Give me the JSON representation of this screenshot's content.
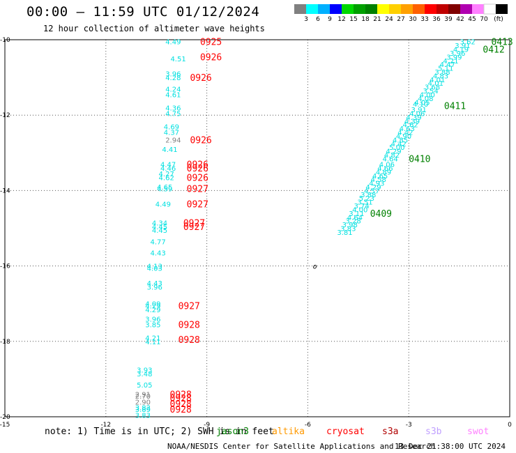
{
  "header": {
    "title": "00:00 – 11:59 UTC 01/12/2024",
    "subtitle": "12 hour collection of altimeter wave heights"
  },
  "colorbar": {
    "labels": [
      "3",
      "6",
      "9",
      "12",
      "15",
      "18",
      "21",
      "24",
      "27",
      "30",
      "33",
      "36",
      "39",
      "42",
      "45",
      "70",
      "(ft)"
    ],
    "colors": [
      "#808080",
      "#00ffff",
      "#00b0ff",
      "#0000ff",
      "#00d800",
      "#00a000",
      "#008000",
      "#ffff00",
      "#ffd000",
      "#ffa000",
      "#ff6000",
      "#ff0000",
      "#c00000",
      "#800000",
      "#b000b0",
      "#ff80ff",
      "#ffffff",
      "#000000"
    ]
  },
  "axes": {
    "x_ticks": [
      "-15",
      "-12",
      "-9",
      "-6",
      "-3",
      "0"
    ],
    "y_ticks": [
      "-10",
      "-12",
      "-14",
      "-16",
      "-18",
      "-20"
    ]
  },
  "map_label": "o",
  "chart_data": {
    "type": "scatter",
    "xlim": [
      -15,
      0
    ],
    "ylim": [
      -20,
      -10
    ],
    "point_color": "#00e0e0",
    "low_color": "#808080",
    "track_west": [
      {
        "x": -10.0,
        "y": -10.05,
        "v": "4.49"
      },
      {
        "x": -9.85,
        "y": -10.5,
        "v": "4.51"
      },
      {
        "x": -10.0,
        "y": -10.9,
        "v": "3.96"
      },
      {
        "x": -10.0,
        "y": -11.0,
        "v": "4.28"
      },
      {
        "x": -10.0,
        "y": -11.3,
        "v": "4.24"
      },
      {
        "x": -10.0,
        "y": -11.45,
        "v": "4.61"
      },
      {
        "x": -10.0,
        "y": -11.8,
        "v": "4.36"
      },
      {
        "x": -10.0,
        "y": -11.95,
        "v": "4.75"
      },
      {
        "x": -10.05,
        "y": -12.3,
        "v": "4.69"
      },
      {
        "x": -10.05,
        "y": -12.45,
        "v": "4.37"
      },
      {
        "x": -10.0,
        "y": -12.65,
        "v": "2.94",
        "low": true
      },
      {
        "x": -10.1,
        "y": -12.9,
        "v": "4.41"
      },
      {
        "x": -10.15,
        "y": -13.3,
        "v": "4.47"
      },
      {
        "x": -10.15,
        "y": -13.4,
        "v": "4.46"
      },
      {
        "x": -10.2,
        "y": -13.55,
        "v": "4.27"
      },
      {
        "x": -10.2,
        "y": -13.65,
        "v": "4.62"
      },
      {
        "x": -10.25,
        "y": -13.9,
        "v": "4.65"
      },
      {
        "x": -10.25,
        "y": -13.95,
        "v": "4.59"
      },
      {
        "x": -10.3,
        "y": -14.35,
        "v": "4.49"
      },
      {
        "x": -10.4,
        "y": -14.85,
        "v": "4.34"
      },
      {
        "x": -10.4,
        "y": -14.95,
        "v": "4.45"
      },
      {
        "x": -10.4,
        "y": -15.05,
        "v": "4.45"
      },
      {
        "x": -10.45,
        "y": -15.35,
        "v": "4.77"
      },
      {
        "x": -10.45,
        "y": -15.65,
        "v": "4.43"
      },
      {
        "x": -10.55,
        "y": -16.0,
        "v": "4.13"
      },
      {
        "x": -10.55,
        "y": -16.05,
        "v": "4.03"
      },
      {
        "x": -10.55,
        "y": -16.45,
        "v": "4.43"
      },
      {
        "x": -10.55,
        "y": -16.55,
        "v": "3.96"
      },
      {
        "x": -10.6,
        "y": -17.0,
        "v": "4.09"
      },
      {
        "x": -10.6,
        "y": -17.05,
        "v": "4.29"
      },
      {
        "x": -10.6,
        "y": -17.15,
        "v": "4.29"
      },
      {
        "x": -10.6,
        "y": -17.4,
        "v": "3.96"
      },
      {
        "x": -10.6,
        "y": -17.55,
        "v": "3.85"
      },
      {
        "x": -10.6,
        "y": -17.9,
        "v": "4.21"
      },
      {
        "x": -10.6,
        "y": -18.0,
        "v": "4.11"
      },
      {
        "x": -10.85,
        "y": -18.75,
        "v": "3.93"
      },
      {
        "x": -10.85,
        "y": -18.85,
        "v": "3.48"
      },
      {
        "x": -10.85,
        "y": -19.15,
        "v": "5.05"
      },
      {
        "x": -10.9,
        "y": -19.4,
        "v": "2.91",
        "low": true
      },
      {
        "x": -10.9,
        "y": -19.45,
        "v": "2.70",
        "low": true
      },
      {
        "x": -10.9,
        "y": -19.6,
        "v": "2.90",
        "low": true
      },
      {
        "x": -10.9,
        "y": -19.75,
        "v": "3.82"
      },
      {
        "x": -10.9,
        "y": -19.8,
        "v": "3.89"
      },
      {
        "x": -10.9,
        "y": -19.95,
        "v": "3.83"
      }
    ],
    "track_east": [
      {
        "x": -1.25,
        "y": -10.05,
        "v": "3.62"
      },
      {
        "x": -1.4,
        "y": -10.15,
        "v": "3.91"
      },
      {
        "x": -1.45,
        "y": -10.25,
        "v": "4.19"
      },
      {
        "x": -1.55,
        "y": -10.35,
        "v": "3.96"
      },
      {
        "x": -1.65,
        "y": -10.45,
        "v": "3.99"
      },
      {
        "x": -1.75,
        "y": -10.55,
        "v": "4.21"
      },
      {
        "x": -1.85,
        "y": -10.65,
        "v": "4.47"
      },
      {
        "x": -1.9,
        "y": -10.75,
        "v": "5.11"
      },
      {
        "x": -2.0,
        "y": -10.85,
        "v": "3.88"
      },
      {
        "x": -2.05,
        "y": -10.95,
        "v": "4.83"
      },
      {
        "x": -2.15,
        "y": -11.05,
        "v": "4.01"
      },
      {
        "x": -2.2,
        "y": -11.15,
        "v": "4.01"
      },
      {
        "x": -2.3,
        "y": -11.25,
        "v": "3.68"
      },
      {
        "x": -2.35,
        "y": -11.35,
        "v": "3.54"
      },
      {
        "x": -2.45,
        "y": -11.45,
        "v": "4.00"
      },
      {
        "x": -2.5,
        "y": -11.55,
        "v": "4.08"
      },
      {
        "x": -2.6,
        "y": -11.65,
        "v": "4.05"
      },
      {
        "x": -2.65,
        "y": -11.7,
        "v": "4.10"
      },
      {
        "x": -2.7,
        "y": -11.85,
        "v": "3.91"
      },
      {
        "x": -2.75,
        "y": -11.95,
        "v": "4.06"
      },
      {
        "x": -2.85,
        "y": -12.05,
        "v": "4.39"
      },
      {
        "x": -2.9,
        "y": -12.15,
        "v": "4.39"
      },
      {
        "x": -2.95,
        "y": -12.25,
        "v": "4.62"
      },
      {
        "x": -3.05,
        "y": -12.35,
        "v": "4.63"
      },
      {
        "x": -3.1,
        "y": -12.45,
        "v": "4.42"
      },
      {
        "x": -3.15,
        "y": -12.55,
        "v": "4.90"
      },
      {
        "x": -3.25,
        "y": -12.65,
        "v": "4.85"
      },
      {
        "x": -3.3,
        "y": -12.75,
        "v": "4.42"
      },
      {
        "x": -3.35,
        "y": -12.85,
        "v": "5.00"
      },
      {
        "x": -3.45,
        "y": -12.95,
        "v": "4.29"
      },
      {
        "x": -3.5,
        "y": -13.05,
        "v": "4.82"
      },
      {
        "x": -3.55,
        "y": -13.15,
        "v": "4.64"
      },
      {
        "x": -3.65,
        "y": -13.3,
        "v": "4.06"
      },
      {
        "x": -3.7,
        "y": -13.4,
        "v": "4.66"
      },
      {
        "x": -3.75,
        "y": -13.5,
        "v": "4.89"
      },
      {
        "x": -3.85,
        "y": -13.6,
        "v": "4.65"
      },
      {
        "x": -3.9,
        "y": -13.7,
        "v": "4.58"
      },
      {
        "x": -3.95,
        "y": -13.8,
        "v": "4.93"
      },
      {
        "x": -4.05,
        "y": -13.9,
        "v": "4.29"
      },
      {
        "x": -4.1,
        "y": -14.0,
        "v": "4.57"
      },
      {
        "x": -4.2,
        "y": -14.1,
        "v": "3.88"
      },
      {
        "x": -4.25,
        "y": -14.2,
        "v": "5.23"
      },
      {
        "x": -4.3,
        "y": -14.3,
        "v": "3.51"
      },
      {
        "x": -4.4,
        "y": -14.4,
        "v": "3.74"
      },
      {
        "x": -4.45,
        "y": -14.5,
        "v": "4.00"
      },
      {
        "x": -4.55,
        "y": -14.6,
        "v": "3.11"
      },
      {
        "x": -4.6,
        "y": -14.7,
        "v": "4.64"
      },
      {
        "x": -4.65,
        "y": -14.8,
        "v": "3.28"
      },
      {
        "x": -4.75,
        "y": -14.9,
        "v": "3.98"
      },
      {
        "x": -4.8,
        "y": -15.0,
        "v": "3.83"
      },
      {
        "x": -4.9,
        "y": -15.1,
        "v": "3.81"
      }
    ],
    "time_labels": [
      {
        "x": -9.2,
        "y": -10.05,
        "t": "0925",
        "c": "#ff0000"
      },
      {
        "x": -9.2,
        "y": -10.45,
        "t": "0926",
        "c": "#ff0000"
      },
      {
        "x": -9.5,
        "y": -11.0,
        "t": "0926",
        "c": "#ff0000"
      },
      {
        "x": -9.5,
        "y": -12.65,
        "t": "0926",
        "c": "#ff0000"
      },
      {
        "x": -9.6,
        "y": -13.3,
        "t": "0926",
        "c": "#ff0000"
      },
      {
        "x": -9.6,
        "y": -13.4,
        "t": "0926",
        "c": "#ff0000"
      },
      {
        "x": -9.6,
        "y": -13.65,
        "t": "0926",
        "c": "#ff0000"
      },
      {
        "x": -9.6,
        "y": -13.95,
        "t": "0927",
        "c": "#ff0000"
      },
      {
        "x": -9.6,
        "y": -14.35,
        "t": "0927",
        "c": "#ff0000"
      },
      {
        "x": -9.7,
        "y": -14.85,
        "t": "0927",
        "c": "#ff0000"
      },
      {
        "x": -9.7,
        "y": -14.95,
        "t": "0927",
        "c": "#ff0000"
      },
      {
        "x": -9.85,
        "y": -17.05,
        "t": "0927",
        "c": "#ff0000"
      },
      {
        "x": -9.85,
        "y": -17.55,
        "t": "0928",
        "c": "#ff0000"
      },
      {
        "x": -9.85,
        "y": -17.95,
        "t": "0928",
        "c": "#ff0000"
      },
      {
        "x": -10.1,
        "y": -19.4,
        "t": "0928",
        "c": "#ff0000"
      },
      {
        "x": -10.1,
        "y": -19.5,
        "t": "0928",
        "c": "#ff0000"
      },
      {
        "x": -10.1,
        "y": -19.65,
        "t": "0928",
        "c": "#ff0000"
      },
      {
        "x": -10.1,
        "y": -19.8,
        "t": "0928",
        "c": "#ff0000"
      },
      {
        "x": -0.55,
        "y": -10.05,
        "t": "0413",
        "c": "#008000"
      },
      {
        "x": -0.8,
        "y": -10.25,
        "t": "0412",
        "c": "#008000"
      },
      {
        "x": -1.95,
        "y": -11.75,
        "t": "0411",
        "c": "#008000"
      },
      {
        "x": -3.0,
        "y": -13.15,
        "t": "0410",
        "c": "#008000"
      },
      {
        "x": -4.15,
        "y": -14.6,
        "t": "0409",
        "c": "#008000"
      }
    ]
  },
  "note": {
    "prefix": "note: 1) Time is in UTC; 2) SWH is in feet",
    "sats": [
      {
        "name": "jason3",
        "color": "#008000"
      },
      {
        "name": "altika",
        "color": "#ff9900"
      },
      {
        "name": "cryosat",
        "color": "#ff0000"
      },
      {
        "name": "s3a",
        "color": "#b00000"
      },
      {
        "name": "s3b",
        "color": "#c0a0ff"
      },
      {
        "name": "swot",
        "color": "#ff80ff"
      }
    ]
  },
  "footer": {
    "credit": "NOAA/NESDIS Center for Satellite Applications and Research",
    "stamp": "13 Dec 21:38:00 UTC 2024"
  }
}
